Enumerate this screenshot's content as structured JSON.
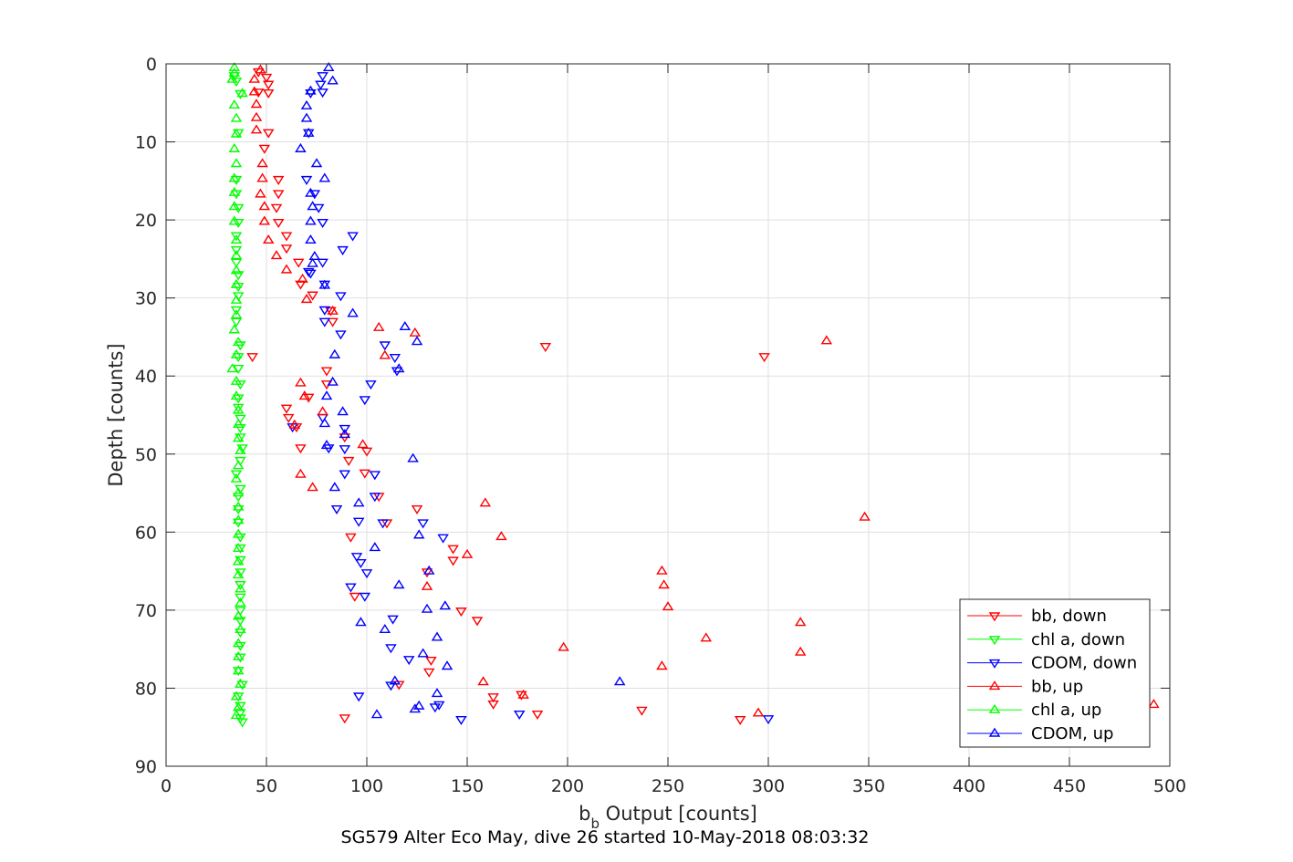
{
  "chart_data": {
    "type": "scatter",
    "title": "",
    "caption": "SG579 Alter Eco May, dive 26 started 10-May-2018 08:03:32",
    "xlabel_main": "b",
    "xlabel_sub": "b",
    "xlabel_rest": " Output [counts]",
    "ylabel": "Depth [counts]",
    "xlim": [
      0,
      500
    ],
    "ylim": [
      0,
      90
    ],
    "y_reversed": true,
    "grid": true,
    "legend_position": "bottom-right",
    "x_ticks": [
      "0",
      "50",
      "100",
      "150",
      "200",
      "250",
      "300",
      "350",
      "400",
      "450",
      "500"
    ],
    "y_ticks": [
      "0",
      "10",
      "20",
      "30",
      "40",
      "50",
      "60",
      "70",
      "80",
      "90"
    ],
    "series": [
      {
        "name": "bb, down",
        "color": "#ff0000",
        "marker": "triangle-down",
        "points": [
          [
            46,
            1
          ],
          [
            50,
            1.7
          ],
          [
            51,
            2.6
          ],
          [
            46,
            3.6
          ],
          [
            51,
            3.7
          ],
          [
            51,
            8.8
          ],
          [
            49,
            10.8
          ],
          [
            56,
            14.8
          ],
          [
            56,
            16.6
          ],
          [
            55,
            18.4
          ],
          [
            56,
            20.3
          ],
          [
            60,
            22
          ],
          [
            60,
            23.6
          ],
          [
            66,
            25.4
          ],
          [
            67,
            28.2
          ],
          [
            73,
            29.6
          ],
          [
            82,
            31.6
          ],
          [
            83,
            33
          ],
          [
            189,
            36.2
          ],
          [
            298,
            37.5
          ],
          [
            80,
            39.3
          ],
          [
            80,
            41
          ],
          [
            71,
            42.7
          ],
          [
            60,
            44.1
          ],
          [
            61,
            45.3
          ],
          [
            65,
            46.5
          ],
          [
            67,
            49.2
          ],
          [
            89,
            47.8
          ],
          [
            91,
            50.8
          ],
          [
            99,
            52.4
          ],
          [
            106,
            55.4
          ],
          [
            125,
            57
          ],
          [
            110,
            58.8
          ],
          [
            92,
            60.6
          ],
          [
            143,
            62.1
          ],
          [
            143,
            63.6
          ],
          [
            130,
            65.1
          ],
          [
            94,
            68.2
          ],
          [
            155,
            71.3
          ],
          [
            147,
            70.1
          ],
          [
            132,
            76.4
          ],
          [
            131,
            77.9
          ],
          [
            116,
            79.5
          ],
          [
            163,
            81.1
          ],
          [
            163,
            82
          ],
          [
            177,
            80.8
          ],
          [
            185,
            83.3
          ],
          [
            237,
            82.8
          ],
          [
            286,
            84
          ],
          [
            89,
            83.8
          ],
          [
            43,
            37.5
          ],
          [
            100,
            49.6
          ]
        ]
      },
      {
        "name": "chl a, down",
        "color": "#00ff00",
        "marker": "triangle-down",
        "points": [
          [
            34,
            1.5
          ],
          [
            35,
            2.2
          ],
          [
            37,
            3.8
          ],
          [
            36,
            8.8
          ],
          [
            35,
            14.8
          ],
          [
            35,
            16.6
          ],
          [
            36,
            18.4
          ],
          [
            36,
            20.3
          ],
          [
            35,
            22
          ],
          [
            35,
            23.8
          ],
          [
            35,
            25.4
          ],
          [
            36,
            27
          ],
          [
            36,
            28.5
          ],
          [
            36,
            29.7
          ],
          [
            35,
            31.5
          ],
          [
            35,
            33
          ],
          [
            37,
            36
          ],
          [
            36,
            37.5
          ],
          [
            36,
            39
          ],
          [
            37,
            41
          ],
          [
            36,
            42.8
          ],
          [
            36,
            44
          ],
          [
            37,
            45.4
          ],
          [
            37,
            46.6
          ],
          [
            37,
            47.8
          ],
          [
            38,
            49.2
          ],
          [
            37,
            50.8
          ],
          [
            35,
            52.5
          ],
          [
            37,
            54.4
          ],
          [
            36,
            55.4
          ],
          [
            36,
            57
          ],
          [
            36,
            58.7
          ],
          [
            37,
            60.6
          ],
          [
            37,
            62
          ],
          [
            37,
            63.5
          ],
          [
            37,
            65.1
          ],
          [
            37,
            66.7
          ],
          [
            37,
            68.3
          ],
          [
            37,
            70
          ],
          [
            37,
            71.3
          ],
          [
            37,
            72.8
          ],
          [
            37,
            74.5
          ],
          [
            37,
            76
          ],
          [
            36,
            77.7
          ],
          [
            38,
            79.5
          ],
          [
            36,
            81
          ],
          [
            37,
            82.2
          ],
          [
            37,
            83.1
          ],
          [
            37,
            83.8
          ],
          [
            38,
            84.3
          ]
        ]
      },
      {
        "name": "CDOM, down",
        "color": "#0000ff",
        "marker": "triangle-down",
        "points": [
          [
            78,
            1.5
          ],
          [
            77,
            2.6
          ],
          [
            78,
            3.6
          ],
          [
            72,
            3.7
          ],
          [
            71,
            8.8
          ],
          [
            70,
            14.8
          ],
          [
            74,
            16.6
          ],
          [
            76,
            18.4
          ],
          [
            78,
            20.3
          ],
          [
            93,
            22
          ],
          [
            88,
            23.8
          ],
          [
            78,
            25.4
          ],
          [
            71,
            26.6
          ],
          [
            79,
            28.2
          ],
          [
            87,
            29.7
          ],
          [
            79,
            31.5
          ],
          [
            79,
            33
          ],
          [
            87,
            34.6
          ],
          [
            109,
            36
          ],
          [
            114,
            37.6
          ],
          [
            115,
            39.3
          ],
          [
            102,
            41
          ],
          [
            99,
            43
          ],
          [
            78,
            45.3
          ],
          [
            89,
            46.7
          ],
          [
            81,
            49.2
          ],
          [
            89,
            49.3
          ],
          [
            89,
            52.5
          ],
          [
            104,
            52.6
          ],
          [
            104,
            55.4
          ],
          [
            85,
            57
          ],
          [
            96,
            58.6
          ],
          [
            108,
            58.8
          ],
          [
            128,
            58.8
          ],
          [
            138,
            60.7
          ],
          [
            95,
            63.1
          ],
          [
            97,
            63.9
          ],
          [
            100,
            65.2
          ],
          [
            92,
            67
          ],
          [
            99,
            68.2
          ],
          [
            113,
            71.1
          ],
          [
            112,
            74.8
          ],
          [
            121,
            76.3
          ],
          [
            112,
            79.6
          ],
          [
            96,
            81
          ],
          [
            136,
            82.1
          ],
          [
            134,
            82.4
          ],
          [
            147,
            84
          ],
          [
            176,
            83.3
          ],
          [
            300,
            83.9
          ],
          [
            63,
            46.5
          ],
          [
            72,
            26.8
          ]
        ]
      },
      {
        "name": "bb, up",
        "color": "#ff0000",
        "marker": "triangle-up",
        "points": [
          [
            47,
            0.8
          ],
          [
            44,
            2
          ],
          [
            44,
            3.6
          ],
          [
            45,
            5.2
          ],
          [
            45,
            6.9
          ],
          [
            45,
            8.5
          ],
          [
            48,
            12.8
          ],
          [
            48,
            14.7
          ],
          [
            47,
            16.7
          ],
          [
            49,
            18.3
          ],
          [
            49,
            20.2
          ],
          [
            51,
            22.6
          ],
          [
            55,
            24.6
          ],
          [
            60,
            26.4
          ],
          [
            68,
            27.6
          ],
          [
            70,
            30.2
          ],
          [
            83,
            31.7
          ],
          [
            106,
            33.8
          ],
          [
            124,
            34.5
          ],
          [
            329,
            35.5
          ],
          [
            109,
            37.4
          ],
          [
            67,
            40.9
          ],
          [
            69,
            42.6
          ],
          [
            64,
            46.3
          ],
          [
            78,
            44.6
          ],
          [
            98,
            48.8
          ],
          [
            67,
            52.6
          ],
          [
            73,
            54.3
          ],
          [
            159,
            56.3
          ],
          [
            348,
            58.1
          ],
          [
            167,
            60.6
          ],
          [
            150,
            62.9
          ],
          [
            130,
            67
          ],
          [
            247,
            65
          ],
          [
            248,
            66.8
          ],
          [
            250,
            69.6
          ],
          [
            316,
            71.6
          ],
          [
            269,
            73.6
          ],
          [
            316,
            75.4
          ],
          [
            247,
            77.2
          ],
          [
            158,
            79.2
          ],
          [
            178,
            80.9
          ],
          [
            295,
            83.2
          ],
          [
            492,
            82.1
          ],
          [
            198,
            74.8
          ]
        ]
      },
      {
        "name": "chl a, up",
        "color": "#00ff00",
        "marker": "triangle-up",
        "points": [
          [
            34,
            0.5
          ],
          [
            34,
            1.2
          ],
          [
            33,
            2
          ],
          [
            38,
            3.8
          ],
          [
            34,
            5.3
          ],
          [
            35,
            7
          ],
          [
            35,
            9
          ],
          [
            34,
            10.9
          ],
          [
            35,
            12.8
          ],
          [
            34,
            14.7
          ],
          [
            34,
            16.5
          ],
          [
            34,
            18.3
          ],
          [
            34,
            20.2
          ],
          [
            35,
            22.6
          ],
          [
            35,
            24.6
          ],
          [
            35,
            26.5
          ],
          [
            35,
            28.3
          ],
          [
            35,
            30.3
          ],
          [
            35,
            32.2
          ],
          [
            34,
            34.1
          ],
          [
            36,
            35.7
          ],
          [
            35,
            37.3
          ],
          [
            33,
            39.1
          ],
          [
            35,
            40.7
          ],
          [
            35,
            42.6
          ],
          [
            36,
            44.4
          ],
          [
            36,
            46.2
          ],
          [
            36,
            48
          ],
          [
            37,
            49.6
          ],
          [
            36,
            51.5
          ],
          [
            35,
            53.2
          ],
          [
            36,
            55
          ],
          [
            36,
            56.8
          ],
          [
            36,
            58.5
          ],
          [
            36,
            60.3
          ],
          [
            36,
            62.1
          ],
          [
            36,
            63.8
          ],
          [
            36,
            65.5
          ],
          [
            37,
            67.3
          ],
          [
            37,
            69.1
          ],
          [
            36,
            70.8
          ],
          [
            37,
            72.5
          ],
          [
            36,
            74.3
          ],
          [
            36,
            76
          ],
          [
            36,
            77.8
          ],
          [
            37,
            79.5
          ],
          [
            35,
            81.1
          ],
          [
            36,
            82.5
          ],
          [
            35,
            83.5
          ]
        ]
      },
      {
        "name": "CDOM, up",
        "color": "#0000ff",
        "marker": "triangle-up",
        "points": [
          [
            81,
            0.5
          ],
          [
            83,
            2.2
          ],
          [
            72,
            3.5
          ],
          [
            70,
            5.4
          ],
          [
            70,
            7
          ],
          [
            71,
            8.9
          ],
          [
            67,
            10.9
          ],
          [
            75,
            12.8
          ],
          [
            79,
            14.7
          ],
          [
            72,
            16.6
          ],
          [
            73,
            18.3
          ],
          [
            72,
            20.2
          ],
          [
            72,
            22.6
          ],
          [
            74,
            24.7
          ],
          [
            73,
            25.6
          ],
          [
            79,
            28.4
          ],
          [
            93,
            32
          ],
          [
            119,
            33.7
          ],
          [
            125,
            35.6
          ],
          [
            84,
            37.3
          ],
          [
            116,
            39.1
          ],
          [
            83,
            40.8
          ],
          [
            80,
            42.6
          ],
          [
            88,
            44.6
          ],
          [
            79,
            46.1
          ],
          [
            89,
            47.5
          ],
          [
            80,
            48.9
          ],
          [
            123,
            50.6
          ],
          [
            84,
            54.3
          ],
          [
            96,
            56.3
          ],
          [
            126,
            60.4
          ],
          [
            104,
            62
          ],
          [
            131,
            65
          ],
          [
            116,
            66.8
          ],
          [
            139,
            69.5
          ],
          [
            130,
            69.9
          ],
          [
            97,
            71.6
          ],
          [
            135,
            73.5
          ],
          [
            109,
            72.5
          ],
          [
            128,
            75.6
          ],
          [
            140,
            77.2
          ],
          [
            226,
            79.2
          ],
          [
            114,
            79.1
          ],
          [
            135,
            80.7
          ],
          [
            126,
            82.3
          ],
          [
            105,
            83.4
          ],
          [
            124,
            82.7
          ]
        ]
      }
    ]
  }
}
